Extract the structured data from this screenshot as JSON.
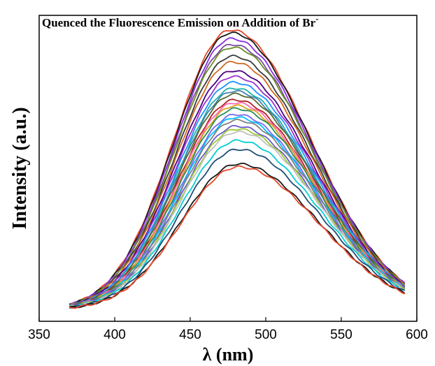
{
  "chart_data": {
    "type": "line",
    "title": "Quenced the Fluorescence Emission on Addition of Br",
    "title_superscript": "-",
    "xlabel": "λ (nm)",
    "ylabel": "Intensity (a.u.)",
    "xlim": [
      350,
      600
    ],
    "x_ticks": [
      350,
      400,
      450,
      500,
      550,
      600
    ],
    "y_tick_labels": "none",
    "grid": false,
    "legend": "none",
    "x_range": [
      370,
      592
    ],
    "peak_shift": "peak ~478 nm at highest intensity, ~482 nm at lowest",
    "series": [
      {
        "color": "#e8472a",
        "peak": 100
      },
      {
        "color": "#1a1a1a",
        "peak": 99
      },
      {
        "color": "#8a2be2",
        "peak": 97
      },
      {
        "color": "#7a4fa0",
        "peak": 95
      },
      {
        "color": "#6b8e23",
        "peak": 94
      },
      {
        "color": "#3a3a3a",
        "peak": 91
      },
      {
        "color": "#d2691e",
        "peak": 89
      },
      {
        "color": "#4b0082",
        "peak": 86
      },
      {
        "color": "#9932cc",
        "peak": 84
      },
      {
        "color": "#1e90ff",
        "peak": 82
      },
      {
        "color": "#20b2aa",
        "peak": 80
      },
      {
        "color": "#4682b4",
        "peak": 79
      },
      {
        "color": "#556b2f",
        "peak": 78
      },
      {
        "color": "#b22222",
        "peak": 76
      },
      {
        "color": "#ff69b4",
        "peak": 75
      },
      {
        "color": "#daa520",
        "peak": 74
      },
      {
        "color": "#2e8b57",
        "peak": 73
      },
      {
        "color": "#7b68ee",
        "peak": 71
      },
      {
        "color": "#00bfff",
        "peak": 70
      },
      {
        "color": "#808080",
        "peak": 69
      },
      {
        "color": "#6a5acd",
        "peak": 67
      },
      {
        "color": "#9acd32",
        "peak": 66
      },
      {
        "color": "#c0c0c0",
        "peak": 65
      },
      {
        "color": "#00ced1",
        "peak": 62
      },
      {
        "color": "#1f4e79",
        "peak": 59
      },
      {
        "color": "#1a1a1a",
        "peak": 54
      },
      {
        "color": "#e8472a",
        "peak": 53
      }
    ]
  }
}
